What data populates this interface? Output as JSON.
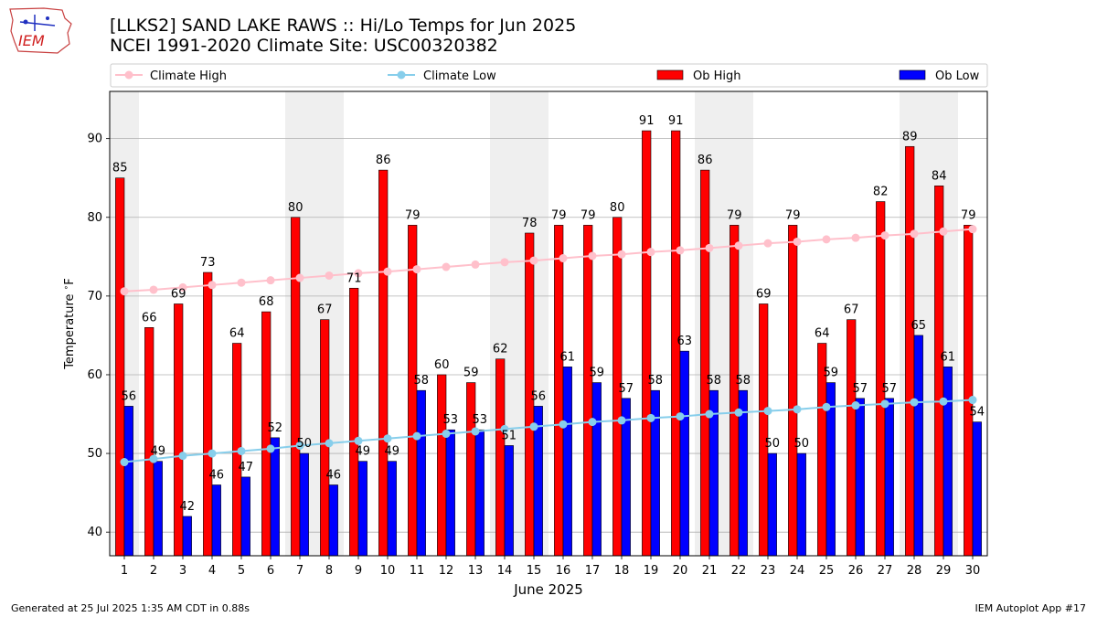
{
  "logo": {
    "text": "IEM"
  },
  "title": {
    "line1": "[LLKS2] SAND LAKE RAWS :: Hi/Lo Temps for Jun 2025",
    "line2": "NCEI 1991-2020 Climate Site: USC00320382"
  },
  "footer": {
    "left": "Generated at 25 Jul 2025 1:35 AM CDT in 0.88s",
    "right": "IEM Autoplot App #17"
  },
  "colors": {
    "ob_high": "#ff0000",
    "ob_low": "#0000ff",
    "climate_high": "#ffc0cb",
    "climate_low": "#87ceeb",
    "weekend_band": "#efefef",
    "grid": "#b0b0b0"
  },
  "chart_data": {
    "type": "bar",
    "title": "[LLKS2] SAND LAKE RAWS :: Hi/Lo Temps for Jun 2025",
    "xlabel": "June 2025",
    "ylabel": "Temperature $^\\circ$F",
    "ylim": [
      37,
      96
    ],
    "yticks": [
      40,
      50,
      60,
      70,
      80,
      90
    ],
    "grid": true,
    "legend_position": "top",
    "categories": [
      "1",
      "2",
      "3",
      "4",
      "5",
      "6",
      "7",
      "8",
      "9",
      "10",
      "11",
      "12",
      "13",
      "14",
      "15",
      "16",
      "17",
      "18",
      "19",
      "20",
      "21",
      "22",
      "23",
      "24",
      "25",
      "26",
      "27",
      "28",
      "29",
      "30"
    ],
    "series": [
      {
        "name": "Ob High",
        "type": "bar",
        "values": [
          85,
          66,
          69,
          73,
          64,
          68,
          80,
          67,
          71,
          86,
          79,
          60,
          59,
          62,
          78,
          79,
          79,
          80,
          91,
          91,
          86,
          79,
          69,
          79,
          64,
          67,
          82,
          89,
          84,
          79
        ]
      },
      {
        "name": "Ob Low",
        "type": "bar",
        "values": [
          56,
          49,
          42,
          46,
          47,
          52,
          50,
          46,
          49,
          49,
          58,
          53,
          53,
          51,
          56,
          61,
          59,
          57,
          58,
          63,
          58,
          58,
          50,
          50,
          59,
          57,
          57,
          65,
          61,
          54
        ]
      },
      {
        "name": "Climate High",
        "type": "line",
        "values": [
          70.6,
          70.8,
          71.1,
          71.4,
          71.7,
          72.0,
          72.3,
          72.6,
          72.9,
          73.1,
          73.4,
          73.7,
          74.0,
          74.3,
          74.5,
          74.8,
          75.1,
          75.3,
          75.6,
          75.8,
          76.1,
          76.4,
          76.7,
          76.9,
          77.2,
          77.4,
          77.7,
          77.9,
          78.2,
          78.5
        ]
      },
      {
        "name": "Climate Low",
        "type": "line",
        "values": [
          48.9,
          49.3,
          49.7,
          50.0,
          50.3,
          50.6,
          51.0,
          51.3,
          51.6,
          51.9,
          52.2,
          52.5,
          52.8,
          53.1,
          53.4,
          53.7,
          54.0,
          54.2,
          54.5,
          54.7,
          55.0,
          55.2,
          55.4,
          55.6,
          55.9,
          56.1,
          56.3,
          56.5,
          56.6,
          56.8
        ]
      }
    ],
    "weekend_days": [
      1,
      7,
      8,
      14,
      15,
      21,
      22,
      28,
      29
    ]
  }
}
